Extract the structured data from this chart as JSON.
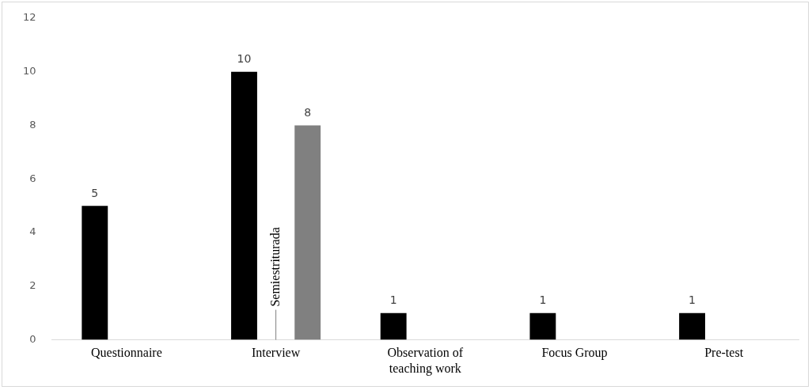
{
  "chart_data": {
    "type": "bar",
    "categories": [
      "Questionnaire",
      "Interview",
      "Observation of teaching work",
      "Focus Group",
      "Pre-test"
    ],
    "series": [
      {
        "color": "#000000",
        "values": [
          5,
          10,
          1,
          1,
          1
        ]
      },
      {
        "color": "#808080",
        "values": [
          null,
          8,
          null,
          null,
          null
        ]
      }
    ],
    "ylim": [
      0,
      12
    ],
    "yticks": [
      0,
      2,
      4,
      6,
      8,
      10,
      12
    ],
    "grid": false,
    "legend": false,
    "data_labels": true,
    "annotations": [
      "Semiestriturada"
    ]
  }
}
